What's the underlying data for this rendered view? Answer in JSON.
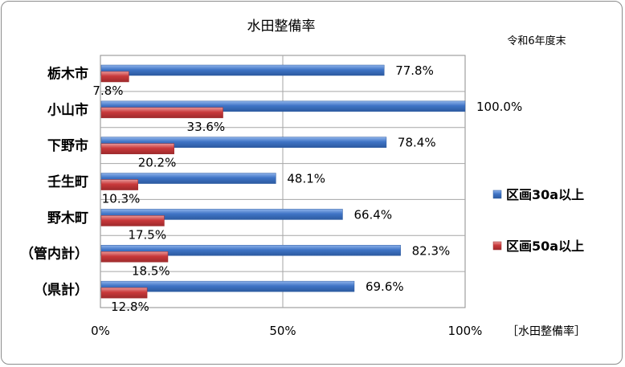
{
  "chart_data": {
    "type": "bar",
    "orientation": "horizontal",
    "title": "水田整備率",
    "subtitle": "令和6年度末",
    "xlabel": "［水田整備率］",
    "categories": [
      "栃木市",
      "小山市",
      "下野市",
      "壬生町",
      "野木町",
      "（管内計）",
      "（県計）"
    ],
    "series": [
      {
        "name": "区画30a以上",
        "color": "#3f74c6",
        "values": [
          77.8,
          100.0,
          78.4,
          48.1,
          66.4,
          82.3,
          69.6
        ],
        "labels": [
          "77.8%",
          "100.0%",
          "78.4%",
          "48.1%",
          "66.4%",
          "82.3%",
          "69.6%"
        ]
      },
      {
        "name": "区画50a以上",
        "color": "#c9393b",
        "values": [
          7.8,
          33.6,
          20.2,
          10.3,
          17.5,
          18.5,
          12.8
        ],
        "labels": [
          "7.8%",
          "33.6%",
          "20.2%",
          "10.3%",
          "17.5%",
          "18.5%",
          "12.8%"
        ]
      }
    ],
    "xlim": [
      0,
      100
    ],
    "xticks": [
      0,
      50,
      100
    ],
    "xtick_labels": [
      "0%",
      "50%",
      "100%"
    ],
    "grid": true,
    "legend_position": "right"
  }
}
